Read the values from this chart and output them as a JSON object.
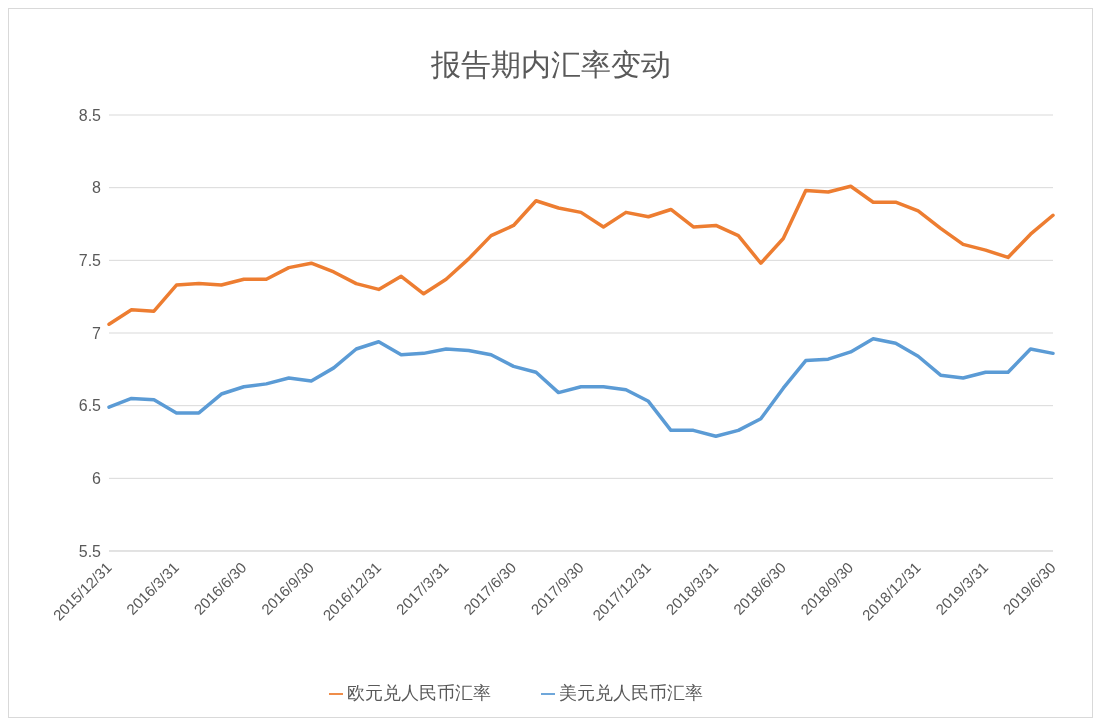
{
  "chart_data": {
    "type": "line",
    "title": "报告期内汇率变动",
    "categories": [
      "2015/12/31",
      null,
      null,
      "2016/3/31",
      null,
      null,
      "2016/6/30",
      null,
      null,
      "2016/9/30",
      null,
      null,
      "2016/12/31",
      null,
      null,
      "2017/3/31",
      null,
      null,
      "2017/6/30",
      null,
      null,
      "2017/9/30",
      null,
      null,
      "2017/12/31",
      null,
      null,
      "2018/3/31",
      null,
      null,
      "2018/6/30",
      null,
      null,
      "2018/9/30",
      null,
      null,
      "2018/12/31",
      null,
      null,
      "2019/3/31",
      null,
      null,
      "2019/6/30"
    ],
    "series": [
      {
        "name": "美元兑人民币汇率",
        "color": "#5b9bd5",
        "values": [
          6.49,
          6.55,
          6.54,
          6.45,
          6.45,
          6.58,
          6.63,
          6.65,
          6.69,
          6.67,
          6.76,
          6.89,
          6.94,
          6.85,
          6.86,
          6.89,
          6.88,
          6.85,
          6.77,
          6.73,
          6.59,
          6.63,
          6.63,
          6.61,
          6.53,
          6.33,
          6.33,
          6.29,
          6.33,
          6.41,
          6.62,
          6.81,
          6.82,
          6.87,
          6.96,
          6.93,
          6.84,
          6.71,
          6.69,
          6.73,
          6.73,
          6.89,
          6.86
        ]
      },
      {
        "name": "欧元兑人民币汇率",
        "color": "#ed7d31",
        "values": [
          7.06,
          7.16,
          7.15,
          7.33,
          7.34,
          7.33,
          7.37,
          7.37,
          7.45,
          7.48,
          7.42,
          7.34,
          7.3,
          7.39,
          7.27,
          7.37,
          7.51,
          7.67,
          7.74,
          7.91,
          7.86,
          7.83,
          7.73,
          7.83,
          7.8,
          7.85,
          7.73,
          7.74,
          7.67,
          7.48,
          7.65,
          7.98,
          7.97,
          8.01,
          7.9,
          7.9,
          7.84,
          7.72,
          7.61,
          7.57,
          7.52,
          7.68,
          7.81
        ]
      }
    ],
    "ylim": [
      5.5,
      8.5
    ],
    "yticks": [
      5.5,
      6,
      6.5,
      7,
      7.5,
      8,
      8.5
    ],
    "grid": "y",
    "legend": "bottom",
    "marker": "none",
    "line_style": "solid"
  }
}
